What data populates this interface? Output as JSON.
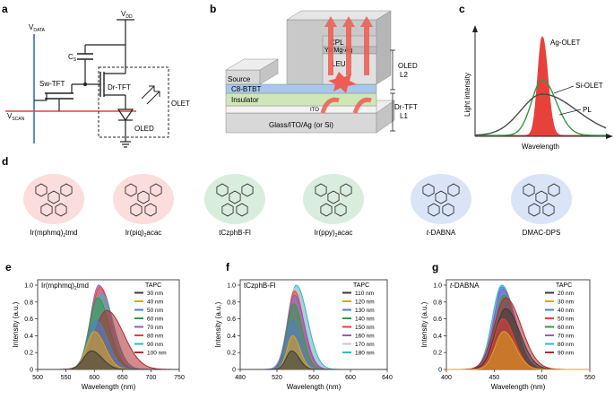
{
  "panel_labels": {
    "a": "a",
    "b": "b",
    "c": "c",
    "d": "d",
    "e": "e",
    "f": "f",
    "g": "g"
  },
  "circuit": {
    "v_data": "V",
    "v_data_sub": "DATA",
    "v_dd": "V",
    "v_dd_sub": "DD",
    "v_scan": "V",
    "v_scan_sub": "SCAN",
    "cs": "C",
    "cs_sub": "S",
    "sw_tft": "Sw-TFT",
    "dr_tft": "Dr-TFT",
    "olet": "OLET",
    "oled": "OLED"
  },
  "device": {
    "cpl": "CPL",
    "electrode": "Yb/Mg-Ag",
    "leu": "LEU",
    "source": "Source",
    "c8btbt": "C8-BTBT",
    "insulator": "Insulator",
    "ito": "ITO",
    "substrate": "Glass/ITO/Ag (or Si)",
    "oled_label": "OLED",
    "l2": "L2",
    "drtft_label": "Dr-TFT",
    "l1": "L1"
  },
  "spectrum_cartoon": {
    "ylabel": "Light intensity",
    "xlabel": "Wavelength",
    "ag": "Ag-OLET",
    "si": "Si-OLET",
    "pl": "PL"
  },
  "molecules": [
    {
      "name": "Ir(mphmq)",
      "sub": "2",
      "suffix": "tmd",
      "italic_prefix": "",
      "color": "#e8413b"
    },
    {
      "name": "Ir(piq)",
      "sub": "2",
      "suffix": "acac",
      "italic_prefix": "",
      "color": "#e8413b"
    },
    {
      "name": "tCzphB-Fl",
      "sub": "",
      "suffix": "",
      "italic_prefix": "",
      "color": "#2f9b45"
    },
    {
      "name": "Ir(ppy)",
      "sub": "2",
      "suffix": "acac",
      "italic_prefix": "",
      "color": "#2f9b45"
    },
    {
      "name": "-DABNA",
      "sub": "",
      "suffix": "",
      "italic_prefix": "t",
      "color": "#2d6fd1"
    },
    {
      "name": "DMAC-DPS",
      "sub": "",
      "suffix": "",
      "italic_prefix": "",
      "color": "#2d6fd1"
    }
  ],
  "chart_data": [
    {
      "type": "line",
      "panel": "e",
      "title": "Ir(mphmq)2tmd",
      "title_main": "Ir(mphmq)",
      "title_sub": "2",
      "title_suffix": "tmd",
      "xlabel": "Wavelength (nm)",
      "ylabel": "Intensity (a.u.)",
      "xlim": [
        500,
        750
      ],
      "ylim": [
        0,
        1.0
      ],
      "xticks": [
        500,
        550,
        600,
        650,
        700,
        750
      ],
      "yticks": [
        0,
        0.2,
        0.4,
        0.6,
        0.8,
        1.0
      ],
      "ytick_labels": [
        "0",
        "0.2",
        "0.4",
        "0.6",
        "0.8",
        "1.0"
      ],
      "legend_title": "TAPC",
      "series": [
        {
          "name": "30 nm",
          "color": "#3a3a3a",
          "peak": 595,
          "amp": 0.22,
          "sigma": 14
        },
        {
          "name": "40 nm",
          "color": "#e3a21a",
          "peak": 600,
          "amp": 0.45,
          "sigma": 14
        },
        {
          "name": "50 nm",
          "color": "#4a7fd0",
          "peak": 603,
          "amp": 0.58,
          "sigma": 15
        },
        {
          "name": "60 nm",
          "color": "#2f9b45",
          "peak": 606,
          "amp": 0.85,
          "sigma": 15
        },
        {
          "name": "70 nm",
          "color": "#8b5ec7",
          "peak": 608,
          "amp": 1.0,
          "sigma": 15
        },
        {
          "name": "80 nm",
          "color": "#e8413b",
          "peak": 610,
          "amp": 0.98,
          "sigma": 16
        },
        {
          "name": "90 nm",
          "color": "#32b8c8",
          "peak": 612,
          "amp": 0.9,
          "sigma": 16
        },
        {
          "name": "100 nm",
          "color": "#b02a30",
          "peak": 622,
          "amp": 0.7,
          "sigma": 22
        }
      ]
    },
    {
      "type": "line",
      "panel": "f",
      "title": "tCzphB-Fl",
      "title_main": "tCzphB-Fl",
      "title_sub": "",
      "title_suffix": "",
      "xlabel": "Wavelength (nm)",
      "ylabel": "Intensity (a.u.)",
      "xlim": [
        480,
        640
      ],
      "ylim": [
        0,
        1.0
      ],
      "xticks": [
        480,
        520,
        560,
        600,
        640
      ],
      "yticks": [
        0,
        0.2,
        0.4,
        0.6,
        0.8,
        1.0
      ],
      "ytick_labels": [
        "0",
        "0.2",
        "0.4",
        "0.6",
        "0.8",
        "1.0"
      ],
      "legend_title": "TAPC",
      "series": [
        {
          "name": "110 nm",
          "color": "#3a3a3a",
          "peak": 536,
          "amp": 0.22,
          "sigma": 6
        },
        {
          "name": "120 nm",
          "color": "#e3a21a",
          "peak": 537,
          "amp": 0.4,
          "sigma": 6
        },
        {
          "name": "130 nm",
          "color": "#4a7fd0",
          "peak": 537,
          "amp": 0.58,
          "sigma": 6.5
        },
        {
          "name": "140 nm",
          "color": "#2f9b45",
          "peak": 538,
          "amp": 0.78,
          "sigma": 7
        },
        {
          "name": "150 nm",
          "color": "#e8413b",
          "peak": 539,
          "amp": 0.93,
          "sigma": 7.5
        },
        {
          "name": "160 nm",
          "color": "#8b5ec7",
          "peak": 539,
          "amp": 0.88,
          "sigma": 8
        },
        {
          "name": "170 nm",
          "color": "#c8c8c8",
          "peak": 540,
          "amp": 0.97,
          "sigma": 8.5
        },
        {
          "name": "180 nm",
          "color": "#32b8c8",
          "peak": 541,
          "amp": 1.0,
          "sigma": 9
        }
      ]
    },
    {
      "type": "line",
      "panel": "g",
      "title": "t-DABNA",
      "title_main": "-DABNA",
      "title_italic": "t",
      "title_sub": "",
      "title_suffix": "",
      "xlabel": "Wavelength (nm)",
      "ylabel": "Intensity (a.u.)",
      "xlim": [
        400,
        550
      ],
      "ylim": [
        0,
        1.0
      ],
      "xticks": [
        400,
        450,
        500,
        550
      ],
      "yticks": [
        0,
        0.2,
        0.4,
        0.6,
        0.8,
        1.0
      ],
      "ytick_labels": [
        "0",
        "0.2",
        "0.4",
        "0.6",
        "0.8",
        "1.0"
      ],
      "legend_title": "TAPC",
      "series": [
        {
          "name": "20 nm",
          "color": "#3a3a3a",
          "peak": 462,
          "amp": 0.72,
          "sigma": 11
        },
        {
          "name": "30 nm",
          "color": "#e3a21a",
          "peak": 460,
          "amp": 0.45,
          "sigma": 9
        },
        {
          "name": "40 nm",
          "color": "#4a7fd0",
          "peak": 458,
          "amp": 0.98,
          "sigma": 8
        },
        {
          "name": "50 nm",
          "color": "#e8413b",
          "peak": 459,
          "amp": 0.6,
          "sigma": 9
        },
        {
          "name": "60 nm",
          "color": "#2f9b45",
          "peak": 460,
          "amp": 0.88,
          "sigma": 9
        },
        {
          "name": "70 nm",
          "color": "#8b5ec7",
          "peak": 459,
          "amp": 0.95,
          "sigma": 10
        },
        {
          "name": "80 nm",
          "color": "#32b8c8",
          "peak": 458,
          "amp": 1.0,
          "sigma": 10
        },
        {
          "name": "90 nm",
          "color": "#b02a30",
          "peak": 462,
          "amp": 0.85,
          "sigma": 12
        }
      ]
    }
  ]
}
